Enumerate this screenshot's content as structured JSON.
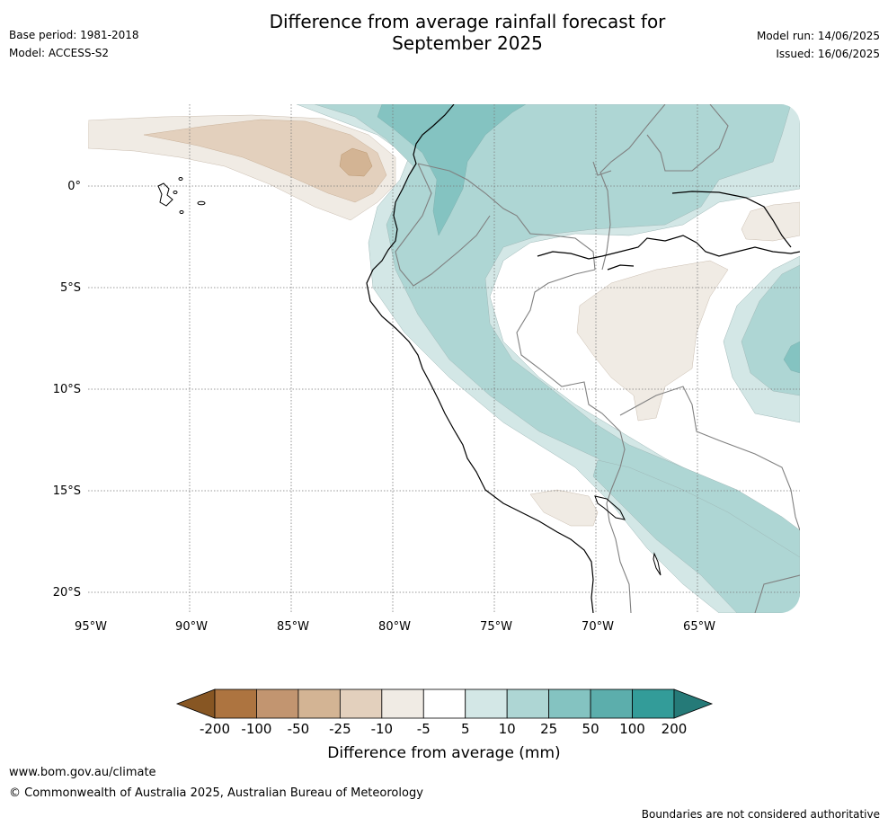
{
  "header": {
    "title_line1": "Difference from average rainfall forecast for",
    "title_line2": "September 2025",
    "base_period": "Base period: 1981-2018",
    "model": "Model: ACCESS-S2",
    "model_run": "Model run: 14/06/2025",
    "issued": "Issued: 16/06/2025"
  },
  "map": {
    "lat_labels": [
      "0°",
      "5°S",
      "10°S",
      "15°S",
      "20°S"
    ],
    "lon_labels": [
      "95°W",
      "90°W",
      "85°W",
      "80°W",
      "75°W",
      "70°W",
      "65°W"
    ]
  },
  "legend": {
    "title": "Difference from average (mm)",
    "tick_labels": [
      "-200",
      "-100",
      "-50",
      "-25",
      "-10",
      "-5",
      "5",
      "10",
      "25",
      "50",
      "100",
      "200"
    ],
    "colors": [
      "#875623",
      "#ad7440",
      "#c29570",
      "#d3b494",
      "#e3d0bd",
      "#f0ebe4",
      "#ffffff",
      "#d3e7e6",
      "#aed6d4",
      "#84c3c1",
      "#5caeac",
      "#339c99",
      "#257a78"
    ]
  },
  "footer": {
    "url": "www.bom.gov.au/climate",
    "copyright": "© Commonwealth of Australia 2025, Australian Bureau of Meteorology",
    "disclaimer": "Boundaries are not considered authoritative"
  }
}
